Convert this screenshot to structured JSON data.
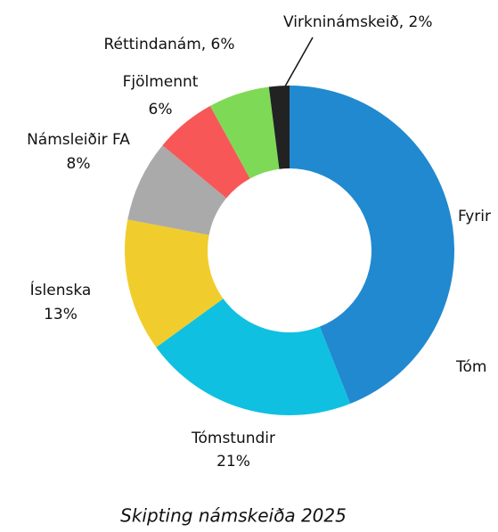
{
  "chart_data": {
    "type": "donut",
    "title": "Skipting námskeiða 2025",
    "categories": [
      "Fyrir",
      "Tómstundir",
      "Íslenska",
      "Námsleiðir FA",
      "Fjölmennt",
      "Réttindanám, 6%",
      "Virkninámskeið, 2%"
    ],
    "values": [
      44,
      21,
      13,
      8,
      6,
      6,
      2
    ],
    "value_labels": [
      null,
      "21%",
      "13%",
      "8%",
      "6%",
      null,
      null
    ],
    "colors": [
      "#2189cf",
      "#10c0e0",
      "#f0cd2c",
      "#aaaaaa",
      "#f85757",
      "#7ed957",
      "#222222"
    ],
    "annotations": [
      "Tóm"
    ]
  }
}
